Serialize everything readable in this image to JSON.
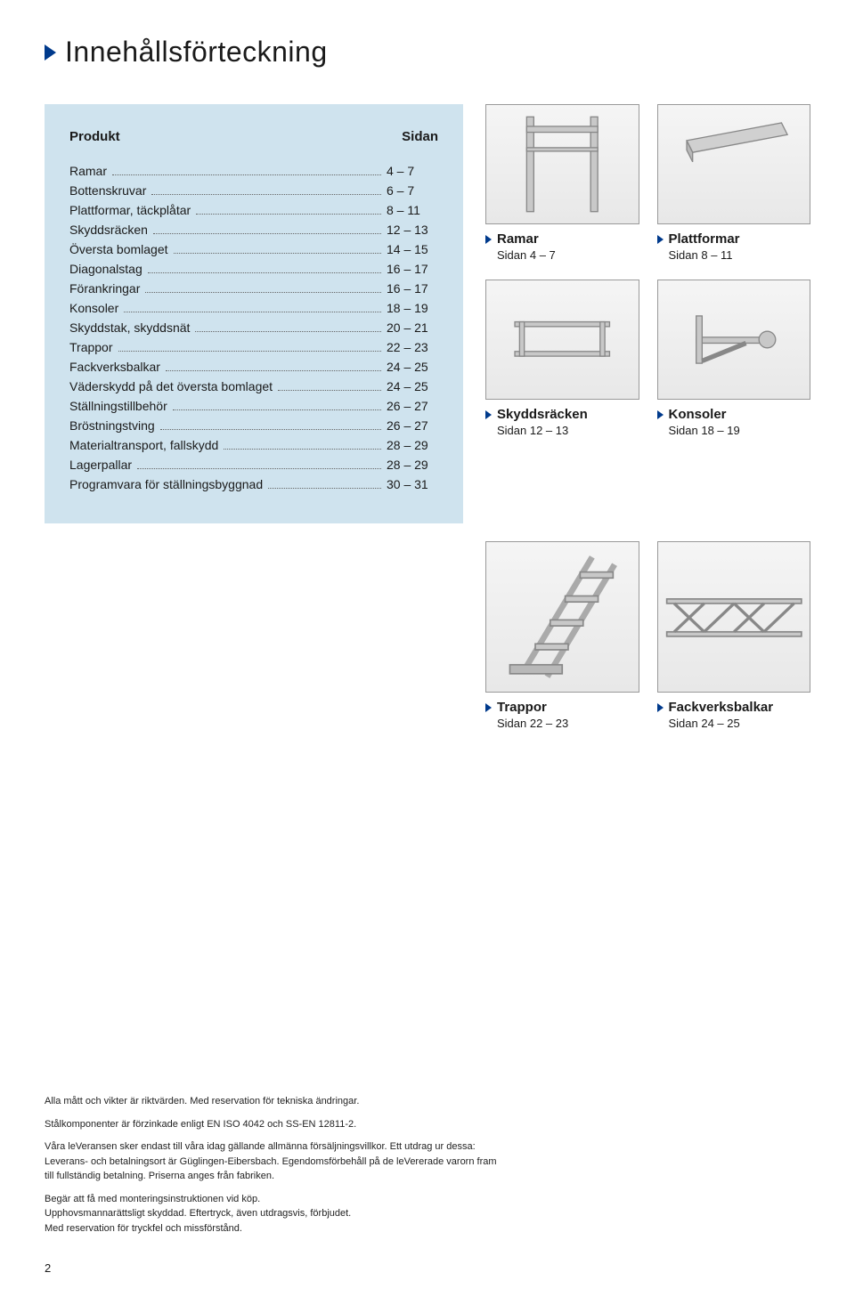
{
  "title": "Innehållsförteckning",
  "toc": {
    "head_product": "Produkt",
    "head_page": "Sidan",
    "rows": [
      {
        "label": "Ramar",
        "page": "4 – 7"
      },
      {
        "label": "Bottenskruvar",
        "page": "6 – 7"
      },
      {
        "label": "Plattformar, täckplåtar",
        "page": "8 – 11"
      },
      {
        "label": "Skyddsräcken",
        "page": "12 – 13"
      },
      {
        "label": "Översta bomlaget",
        "page": "14 – 15"
      },
      {
        "label": "Diagonalstag",
        "page": "16 – 17"
      },
      {
        "label": "Förankringar",
        "page": "16 – 17"
      },
      {
        "label": "Konsoler",
        "page": "18 – 19"
      },
      {
        "label": "Skyddstak, skyddsnät",
        "page": "20 – 21"
      },
      {
        "label": "Trappor",
        "page": "22 – 23"
      },
      {
        "label": "Fackverksbalkar",
        "page": "24 – 25"
      },
      {
        "label": "Väderskydd på det översta bomlaget",
        "page": "24 – 25"
      },
      {
        "label": "Ställningstillbehör",
        "page": "26 – 27"
      },
      {
        "label": "Bröstningstving",
        "page": "26 – 27"
      },
      {
        "label": "Materialtransport, fallskydd",
        "page": "28 – 29"
      },
      {
        "label": "Lagerpallar",
        "page": "28 – 29"
      },
      {
        "label": "Programvara för ställningsbyggnad",
        "page": "30 – 31"
      }
    ]
  },
  "cards": {
    "ramar": {
      "title": "Ramar",
      "sub": "Sidan 4 – 7"
    },
    "plattformar": {
      "title": "Plattformar",
      "sub": "Sidan 8 – 11"
    },
    "skyddsracken": {
      "title": "Skyddsräcken",
      "sub": "Sidan 12 – 13"
    },
    "konsoler": {
      "title": "Konsoler",
      "sub": "Sidan 18 – 19"
    },
    "trappor": {
      "title": "Trappor",
      "sub": "Sidan 22 – 23"
    },
    "fackverk": {
      "title": "Fackverksbalkar",
      "sub": "Sidan 24 – 25"
    }
  },
  "footnotes": {
    "p1": "Alla mått och vikter är riktvärden. Med reservation för tekniska ändringar.",
    "p2": "Stålkomponenter är förzinkade enligt EN ISO 4042 och SS-EN 12811-2.",
    "p3": "Våra leVeransen sker endast till våra idag gällande allmänna försäljningsvillkor. Ett utdrag ur dessa: Leverans- och betalningsort är Güglingen-Eibersbach. Egendomsförbehåll på de leVererade varorn fram till fullständig betalning. Priserna anges från fabriken.",
    "p4": "Begär att få med monteringsinstruktionen vid köp.\nUpphovsmannarättsligt skyddad. Eftertryck, även utdragsvis, förbjudet.\nMed reservation för tryckfel och missförstånd."
  },
  "page_number": "2",
  "colors": {
    "accent": "#003a8c",
    "toc_bg": "#cfe3ee",
    "border": "#999"
  }
}
